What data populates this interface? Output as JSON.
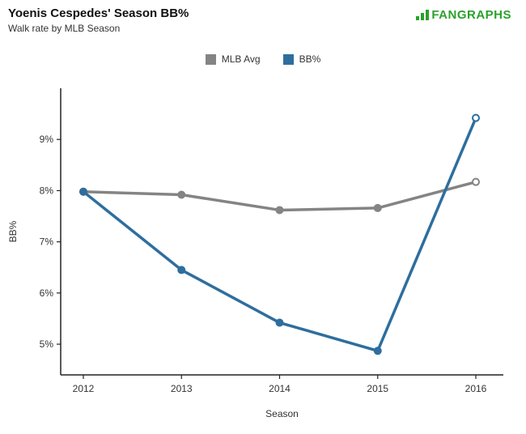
{
  "header": {
    "title": "Yoenis Cespedes' Season BB%",
    "subtitle": "Walk rate by MLB Season"
  },
  "logo": {
    "name": "FanGraphs",
    "text_fan": "FAN",
    "text_graphs": "GRAPHS",
    "color": "#2aa22a"
  },
  "legend": {
    "items": [
      {
        "label": "MLB Avg",
        "color": "#848484"
      },
      {
        "label": "BB%",
        "color": "#2e6e9e"
      }
    ]
  },
  "chart_data": {
    "type": "line",
    "title": "Yoenis Cespedes' Season BB%",
    "subtitle": "Walk rate by MLB Season",
    "xlabel": "Season",
    "ylabel": "BB%",
    "categories": [
      "2012",
      "2013",
      "2014",
      "2015",
      "2016"
    ],
    "series": [
      {
        "name": "MLB Avg",
        "color": "#848484",
        "values": [
          7.98,
          7.92,
          7.62,
          7.66,
          8.17
        ],
        "last_point_open": true
      },
      {
        "name": "BB%",
        "color": "#2e6e9e",
        "values": [
          7.98,
          6.45,
          5.42,
          4.87,
          9.42
        ],
        "last_point_open": true
      }
    ],
    "y_ticks": [
      5,
      6,
      7,
      8,
      9
    ],
    "y_tick_labels": [
      "5%",
      "6%",
      "7%",
      "8%",
      "9%"
    ],
    "ylim": [
      4.4,
      10.0
    ],
    "grid": false,
    "legend_position": "top-center"
  }
}
